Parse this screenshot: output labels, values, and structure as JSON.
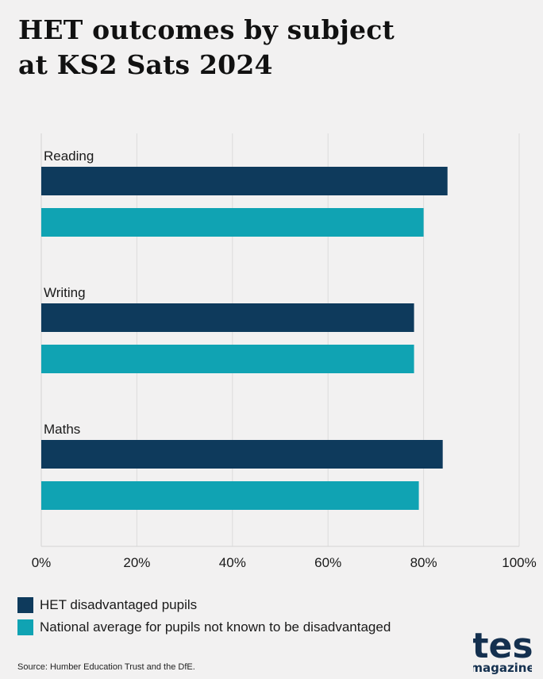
{
  "title_line1": "HET outcomes by subject",
  "title_line2": "at KS2 Sats 2024",
  "chart_data": {
    "type": "bar",
    "orientation": "horizontal",
    "categories": [
      "Reading",
      "Writing",
      "Maths"
    ],
    "series": [
      {
        "name": "HET disadvantaged pupils",
        "color": "#0e3a5c",
        "values": [
          85,
          78,
          84
        ]
      },
      {
        "name": "National average for pupils not known to be disadvantaged",
        "color": "#10a3b3",
        "values": [
          80,
          78,
          79
        ]
      }
    ],
    "xlim": [
      0,
      100
    ],
    "xticks": [
      0,
      20,
      40,
      60,
      80,
      100
    ],
    "xtick_labels": [
      "0%",
      "20%",
      "40%",
      "60%",
      "80%",
      "100%"
    ],
    "grid": true,
    "legend_position": "bottom"
  },
  "legend": [
    {
      "label": "HET disadvantaged pupils",
      "color": "#0e3a5c"
    },
    {
      "label": "National average for pupils not known to be disadvantaged",
      "color": "#10a3b3"
    }
  ],
  "source": "Source: Humber Education Trust and the DfE.",
  "logo": {
    "line1": "tes",
    "line2": "magazine",
    "color": "#14304f"
  }
}
